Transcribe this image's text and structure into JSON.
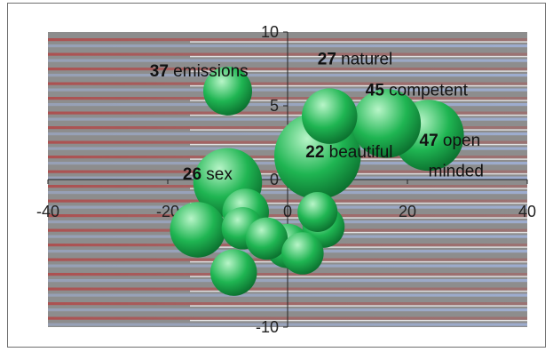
{
  "chart_data": {
    "type": "bubble",
    "xlim": [
      -40,
      40
    ],
    "ylim": [
      -10,
      10
    ],
    "x_ticks": [
      -40,
      -20,
      0,
      20,
      40
    ],
    "y_ticks": [
      -10,
      -5,
      0,
      5,
      10
    ],
    "grid": false,
    "legend": "none",
    "colors": {
      "bubble": "#1fb552",
      "bubble_dark": "#0a6b2c",
      "bubble_light": "#b8f5c8",
      "plot_bg": "#8d8d8d",
      "stripe_red": "#b04a4a",
      "stripe_blue": "#9fb0d6",
      "stripe_white": "#ffffff"
    },
    "labels": [
      {
        "num": "37",
        "text": "emissions",
        "x": -23,
        "y": 7
      },
      {
        "num": "27",
        "text": "naturel",
        "x": 5,
        "y": 7.8
      },
      {
        "num": "45",
        "text": "competent",
        "x": 13,
        "y": 5.7
      },
      {
        "num": "47",
        "text": "open",
        "x": 22,
        "y": 2.3
      },
      {
        "num": "",
        "text": "minded",
        "x": 23.5,
        "y": 0.2
      },
      {
        "num": "22",
        "text": "beautiful",
        "x": 3,
        "y": 1.5
      },
      {
        "num": "26",
        "text": "sex",
        "x": -17.5,
        "y": 0
      }
    ],
    "points": [
      {
        "x": -10,
        "y": 6,
        "size": 1.1
      },
      {
        "x": 7,
        "y": 4.3,
        "size": 1.25
      },
      {
        "x": 16.5,
        "y": 3.8,
        "size": 1.55
      },
      {
        "x": 23.5,
        "y": 3,
        "size": 1.6
      },
      {
        "x": 5,
        "y": 1.6,
        "size": 1.95
      },
      {
        "x": -10,
        "y": -0.2,
        "size": 1.55
      },
      {
        "x": -7,
        "y": -2.2,
        "size": 1.05
      },
      {
        "x": -15,
        "y": -3.4,
        "size": 1.25
      },
      {
        "x": -7.5,
        "y": -3.3,
        "size": 0.95
      },
      {
        "x": -3.5,
        "y": -4,
        "size": 0.95
      },
      {
        "x": 0,
        "y": -4.5,
        "size": 1.0
      },
      {
        "x": 5,
        "y": -2.2,
        "size": 0.9
      },
      {
        "x": 6,
        "y": -3.2,
        "size": 0.95
      },
      {
        "x": 2.5,
        "y": -5,
        "size": 0.95
      },
      {
        "x": -9,
        "y": -6.3,
        "size": 1.05
      }
    ]
  }
}
